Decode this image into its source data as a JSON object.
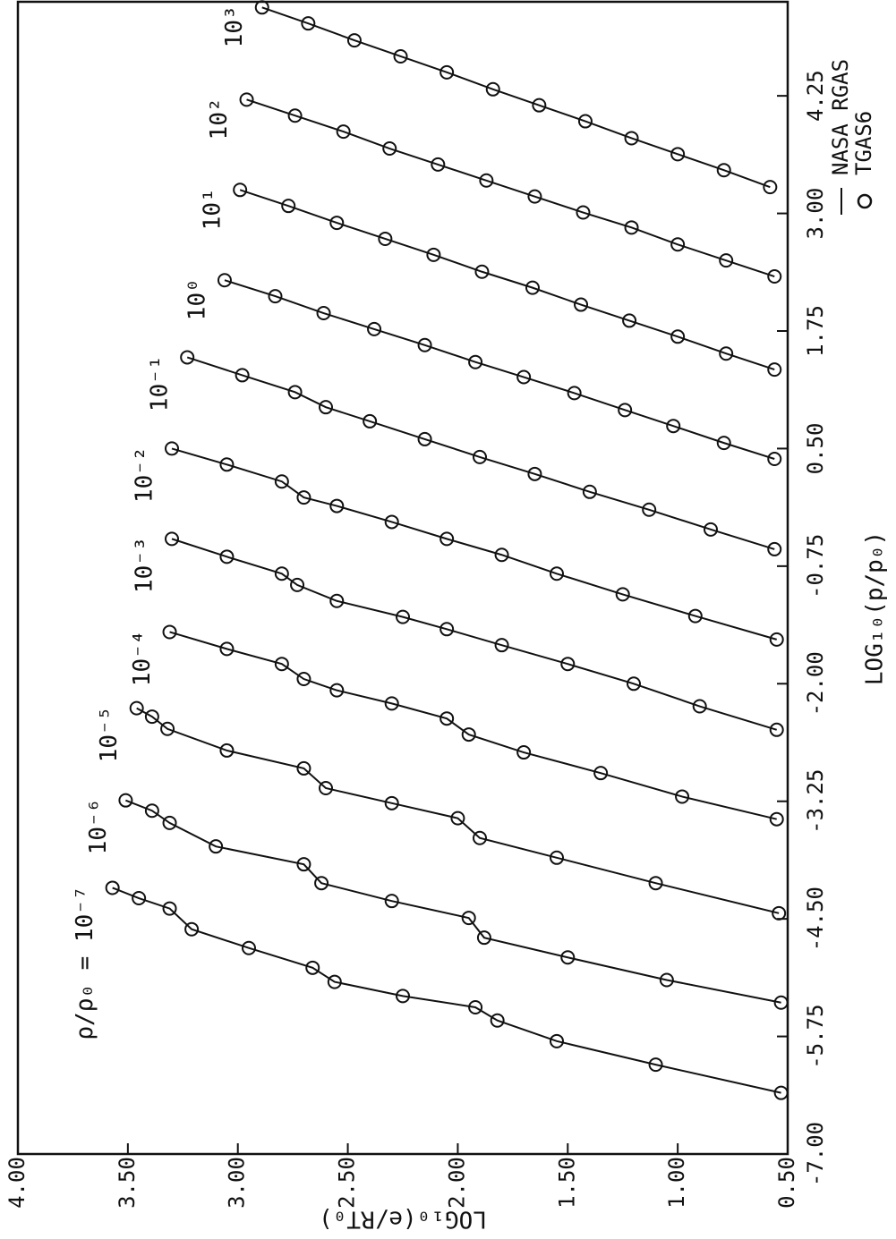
{
  "chart_data": {
    "type": "line",
    "x_label": "LOG₁₀(p/p₀)",
    "y_label": "LOG₁₀(e/RT₀)",
    "color": "#111111",
    "marker": "circle",
    "legend": [
      {
        "label": "NASA RGAS",
        "marker": "line"
      },
      {
        "label": "TGAS6",
        "marker": "circle"
      }
    ],
    "xlim": [
      -7,
      5.25
    ],
    "xticks": [
      {
        "value": -7,
        "label": "-7.00"
      },
      {
        "value": -5.75,
        "label": "-5.75"
      },
      {
        "value": -4.5,
        "label": "-4.50"
      },
      {
        "value": -3.25,
        "label": "-3.25"
      },
      {
        "value": -2,
        "label": "-2.00"
      },
      {
        "value": -0.75,
        "label": "-0.75"
      },
      {
        "value": 0.5,
        "label": "0.50"
      },
      {
        "value": 1.75,
        "label": "1.75"
      },
      {
        "value": 3,
        "label": "3.00"
      },
      {
        "value": 4.25,
        "label": "4.25"
      }
    ],
    "ylim": [
      0.5,
      4
    ],
    "yticks": [
      {
        "value": 0.5,
        "label": "0.50"
      },
      {
        "value": 1,
        "label": "1.00"
      },
      {
        "value": 1.5,
        "label": "1.50"
      },
      {
        "value": 2,
        "label": "2.00"
      },
      {
        "value": 2.5,
        "label": "2.50"
      },
      {
        "value": 3,
        "label": "3.00"
      },
      {
        "value": 3.5,
        "label": "3.50"
      },
      {
        "value": 4,
        "label": "4.00"
      }
    ],
    "series": [
      {
        "label": "ρ/ρ₀ = 10⁻⁷",
        "x": [
          -4.17,
          -4.28,
          -4.39,
          -4.61,
          -4.81,
          -5.02,
          -5.17,
          -5.32,
          -5.44,
          -5.58,
          -5.8,
          -6.05,
          -6.35
        ],
        "values": [
          3.57,
          3.45,
          3.31,
          3.21,
          2.95,
          2.66,
          2.56,
          2.25,
          1.92,
          1.82,
          1.55,
          1.1,
          0.53
        ]
      },
      {
        "label": "10⁻⁶",
        "x": [
          -3.24,
          -3.35,
          -3.48,
          -3.73,
          -3.92,
          -4.12,
          -4.31,
          -4.49,
          -4.7,
          -4.91,
          -5.15,
          -5.39
        ],
        "values": [
          3.51,
          3.39,
          3.31,
          3.1,
          2.7,
          2.62,
          2.3,
          1.95,
          1.88,
          1.5,
          1.05,
          0.53
        ]
      },
      {
        "label": "10⁻⁵",
        "x": [
          -2.26,
          -2.35,
          -2.48,
          -2.71,
          -2.9,
          -3.11,
          -3.27,
          -3.43,
          -3.64,
          -3.85,
          -4.12,
          -4.44
        ],
        "values": [
          3.46,
          3.39,
          3.32,
          3.05,
          2.7,
          2.6,
          2.3,
          2.0,
          1.9,
          1.55,
          1.1,
          0.54
        ]
      },
      {
        "label": "10⁻⁴",
        "x": [
          -1.45,
          -1.63,
          -1.79,
          -1.95,
          -2.07,
          -2.21,
          -2.37,
          -2.54,
          -2.73,
          -2.95,
          -3.2,
          -3.44
        ],
        "values": [
          3.31,
          3.05,
          2.8,
          2.7,
          2.55,
          2.3,
          2.05,
          1.95,
          1.7,
          1.35,
          0.98,
          0.55
        ]
      },
      {
        "label": "10⁻³",
        "x": [
          -0.46,
          -0.65,
          -0.83,
          -0.95,
          -1.12,
          -1.29,
          -1.42,
          -1.59,
          -1.79,
          -2.0,
          -2.24,
          -2.49
        ],
        "values": [
          3.3,
          3.05,
          2.8,
          2.73,
          2.55,
          2.25,
          2.05,
          1.8,
          1.5,
          1.2,
          0.9,
          0.55
        ]
      },
      {
        "label": "10⁻²",
        "x": [
          0.5,
          0.33,
          0.15,
          -0.02,
          -0.11,
          -0.28,
          -0.46,
          -0.63,
          -0.83,
          -1.05,
          -1.28,
          -1.53
        ],
        "values": [
          3.3,
          3.05,
          2.8,
          2.7,
          2.55,
          2.3,
          2.05,
          1.8,
          1.55,
          1.25,
          0.92,
          0.55
        ]
      },
      {
        "label": "10⁻¹",
        "x": [
          1.47,
          1.28,
          1.1,
          0.94,
          0.79,
          0.6,
          0.41,
          0.23,
          0.04,
          -0.15,
          -0.36,
          -0.57
        ],
        "values": [
          3.23,
          2.98,
          2.74,
          2.6,
          2.4,
          2.15,
          1.9,
          1.65,
          1.4,
          1.13,
          0.85,
          0.56
        ]
      },
      {
        "label": "10⁰",
        "x": [
          2.29,
          2.12,
          1.94,
          1.77,
          1.6,
          1.42,
          1.26,
          1.09,
          0.91,
          0.74,
          0.56,
          0.39
        ],
        "values": [
          3.06,
          2.83,
          2.61,
          2.38,
          2.15,
          1.92,
          1.7,
          1.47,
          1.24,
          1.02,
          0.79,
          0.56
        ]
      },
      {
        "label": "10¹",
        "x": [
          3.25,
          3.08,
          2.9,
          2.73,
          2.56,
          2.38,
          2.21,
          2.03,
          1.86,
          1.69,
          1.51,
          1.34
        ],
        "values": [
          2.99,
          2.77,
          2.55,
          2.33,
          2.11,
          1.89,
          1.66,
          1.44,
          1.22,
          1.0,
          0.78,
          0.56
        ]
      },
      {
        "label": "10²",
        "x": [
          4.21,
          4.04,
          3.87,
          3.69,
          3.52,
          3.35,
          3.18,
          3.01,
          2.85,
          2.67,
          2.5,
          2.33
        ],
        "values": [
          2.96,
          2.74,
          2.52,
          2.31,
          2.09,
          1.87,
          1.65,
          1.43,
          1.21,
          1.0,
          0.78,
          0.56
        ]
      },
      {
        "label": "10³",
        "x": [
          5.19,
          5.02,
          4.84,
          4.67,
          4.5,
          4.32,
          4.15,
          3.98,
          3.8,
          3.63,
          3.46,
          3.28
        ],
        "values": [
          2.89,
          2.68,
          2.47,
          2.26,
          2.05,
          1.84,
          1.63,
          1.42,
          1.21,
          1.0,
          0.79,
          0.58
        ]
      }
    ]
  }
}
